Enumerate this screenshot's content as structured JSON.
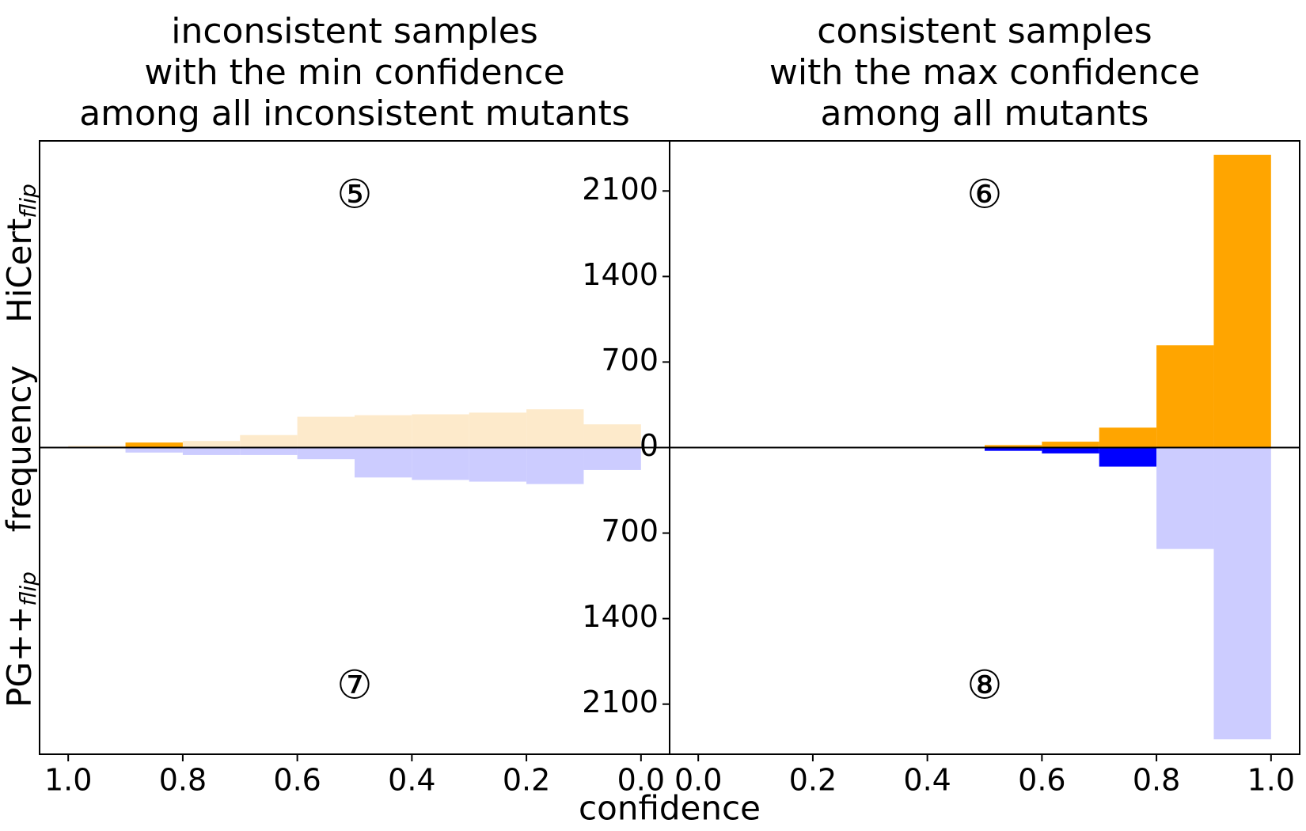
{
  "chart_data": [
    {
      "type": "histogram",
      "title": [
        "inconsistent samples",
        "with the min confidence",
        "among all inconsistent mutants"
      ],
      "bins": [
        0.0,
        0.1,
        0.2,
        0.3,
        0.4,
        0.5,
        0.6,
        0.7,
        0.8,
        0.9,
        1.0
      ],
      "series": [
        {
          "name": "HiCert",
          "subscript": "flip",
          "values": [
            190,
            313,
            286,
            272,
            265,
            252,
            102,
            54,
            41,
            14
          ],
          "colors": [
            "#fdeacb",
            "#fdeacb",
            "#fdeacb",
            "#fdeacb",
            "#fdeacb",
            "#fdeacb",
            "#fdeacb",
            "#fdeacb",
            "#ffa500",
            "#fdeacb"
          ]
        },
        {
          "name": "PG++",
          "subscript": "flip",
          "values": [
            -184,
            -299,
            -279,
            -265,
            -245,
            -95,
            -61,
            -61,
            -41,
            -7
          ],
          "colors": [
            "#ccccff",
            "#ccccff",
            "#ccccff",
            "#ccccff",
            "#ccccff",
            "#ccccff",
            "#ccccff",
            "#ccccff",
            "#ccccff",
            "#ccccff"
          ]
        }
      ],
      "annotations": [
        "⑤",
        "⑦"
      ],
      "xlim": [
        1.05,
        -0.05
      ],
      "xticks": [
        {
          "value": 1,
          "label": "1.0"
        },
        0.8,
        0.6,
        0.4,
        0.2,
        {
          "value": 0,
          "label": "0.0"
        }
      ],
      "ylim": [
        -2510,
        2510
      ]
    },
    {
      "type": "histogram",
      "title": [
        "consistent samples",
        "with the max confidence",
        "among all mutants"
      ],
      "bins": [
        0.0,
        0.1,
        0.2,
        0.3,
        0.4,
        0.5,
        0.6,
        0.7,
        0.8,
        0.9,
        1.0
      ],
      "series": [
        {
          "values": [
            0,
            0,
            0,
            0,
            0,
            20,
            48,
            163,
            837,
            2395
          ],
          "colors": [
            "#ffa500",
            "#ffa500",
            "#ffa500",
            "#ffa500",
            "#ffa500",
            "#ffa500",
            "#ffa500",
            "#ffa500",
            "#ffa500",
            "#ffa500"
          ]
        },
        {
          "values": [
            0,
            0,
            0,
            0,
            0,
            -27,
            -48,
            -156,
            -830,
            -2388
          ],
          "colors": [
            "#0000ff",
            "#0000ff",
            "#0000ff",
            "#0000ff",
            "#0000ff",
            "#0000ff",
            "#0000ff",
            "#0000ff",
            "#ccccff",
            "#ccccff"
          ]
        }
      ],
      "annotations": [
        "⑥",
        "⑧"
      ],
      "xlim": [
        -0.05,
        1.05
      ],
      "xticks": [
        {
          "value": 0,
          "label": "0.0"
        },
        0.2,
        0.4,
        0.6,
        0.8,
        {
          "value": 1,
          "label": "1.0"
        }
      ],
      "ylim": [
        -2510,
        2510
      ],
      "yticks": [
        {
          "value": -2100,
          "label": "2100"
        },
        {
          "value": -1400,
          "label": "1400"
        },
        {
          "value": -700,
          "label": "700"
        },
        0,
        700,
        1400,
        2100
      ]
    }
  ],
  "xlabel": "confidence",
  "ylabel": "frequency"
}
